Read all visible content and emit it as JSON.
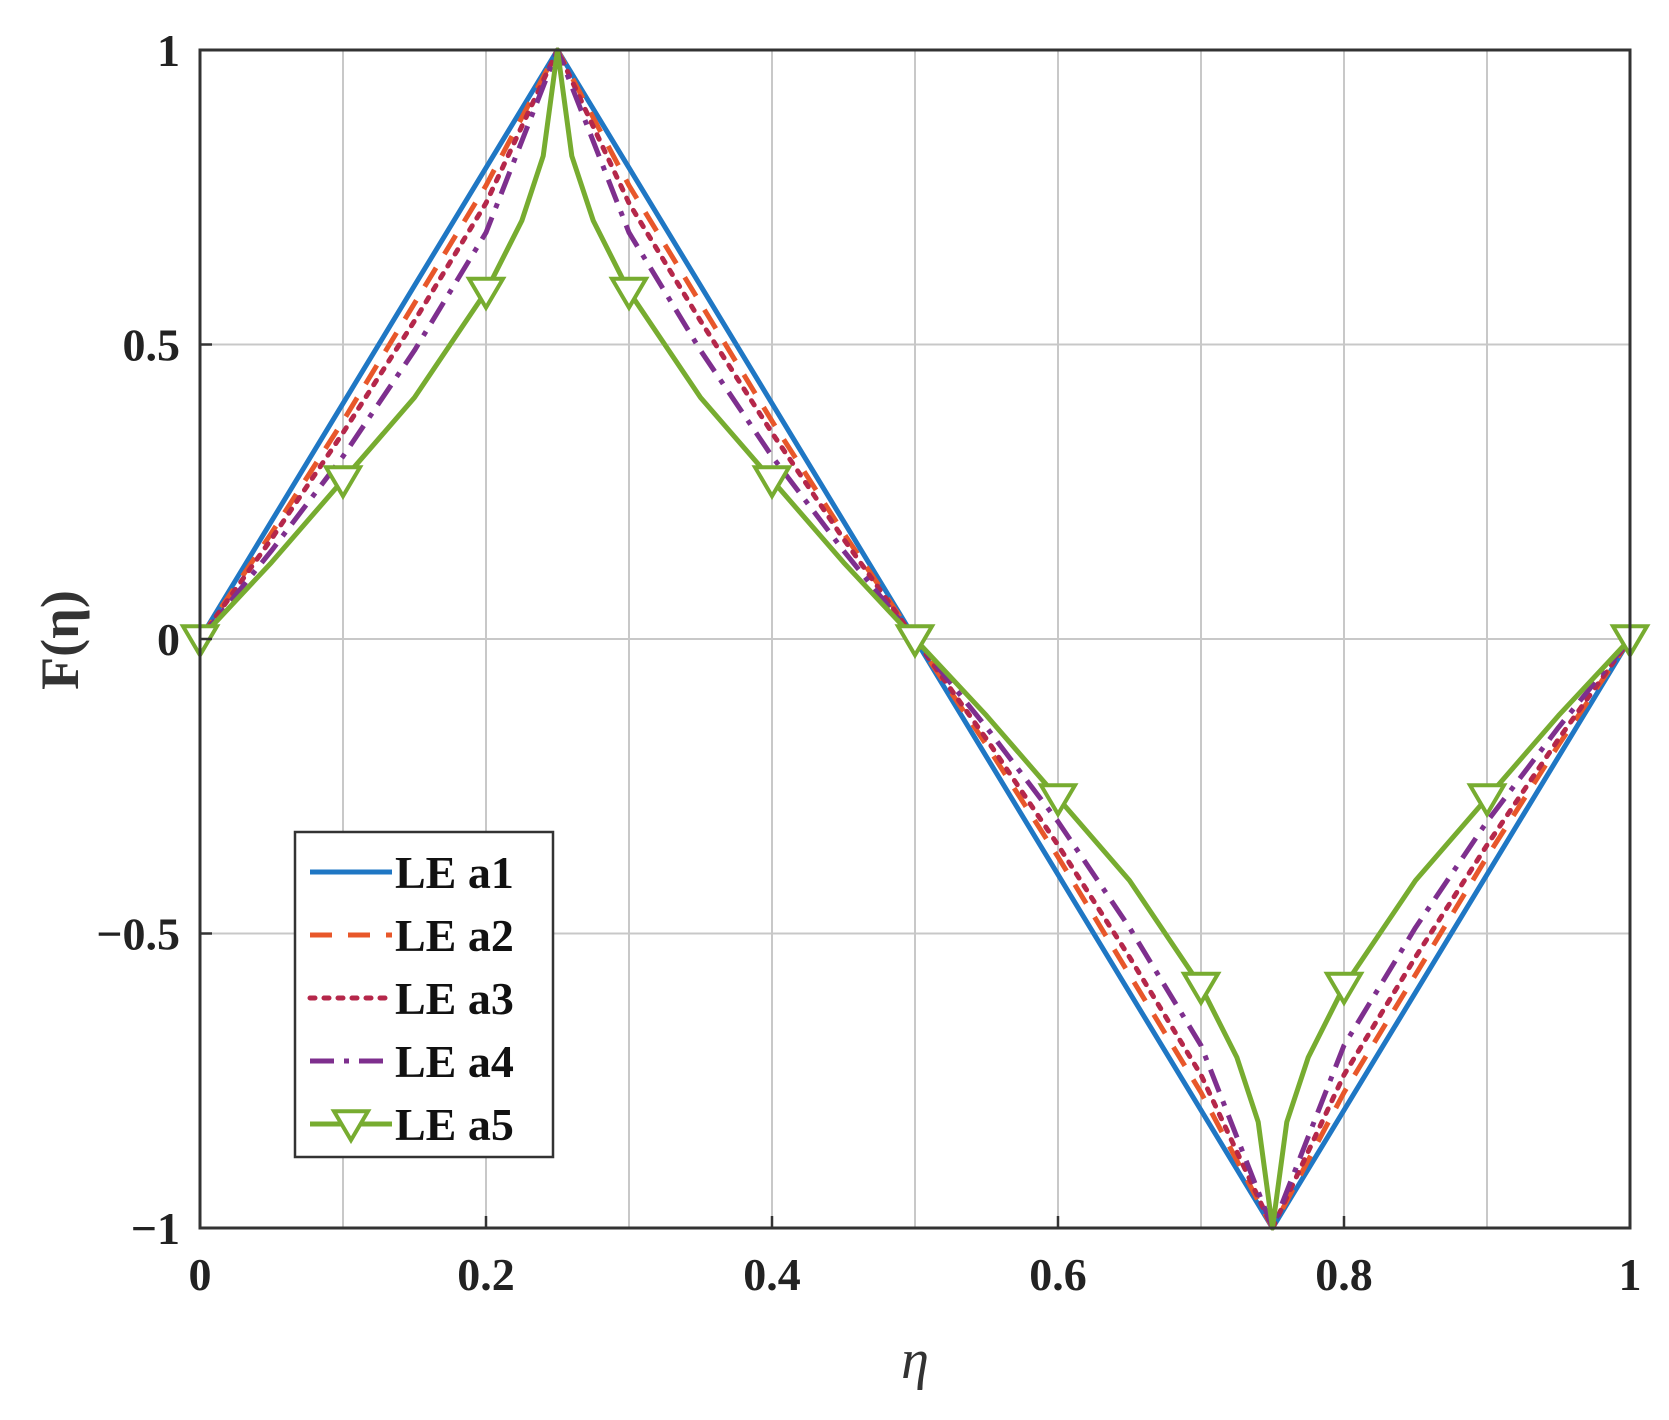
{
  "chart_data": {
    "type": "line",
    "xlabel": "η",
    "ylabel": "F(η)",
    "xlim": [
      0,
      1
    ],
    "ylim": [
      -1,
      1
    ],
    "grid": true,
    "legend_position": "bottom-left",
    "x_ticks": [
      "0",
      "0.2",
      "0.4",
      "0.6",
      "0.8",
      "1"
    ],
    "y_ticks": [
      "1",
      "0.5",
      "0",
      "−0.5",
      "−1"
    ],
    "series": [
      {
        "name": "LE a1",
        "color": "#1f77c4",
        "style": "solid",
        "marker": "none",
        "x": [
          0,
          0.05,
          0.1,
          0.15,
          0.2,
          0.25,
          0.3,
          0.35,
          0.4,
          0.45,
          0.5,
          0.55,
          0.6,
          0.65,
          0.7,
          0.75,
          0.8,
          0.85,
          0.9,
          0.95,
          1
        ],
        "y": [
          0,
          0.2,
          0.4,
          0.6,
          0.8,
          1,
          0.8,
          0.6,
          0.4,
          0.2,
          0,
          -0.2,
          -0.4,
          -0.6,
          -0.8,
          -1,
          -0.8,
          -0.6,
          -0.4,
          -0.2,
          0
        ]
      },
      {
        "name": "LE a2",
        "color": "#e8572a",
        "style": "dashed",
        "marker": "none",
        "x": [
          0,
          0.05,
          0.1,
          0.15,
          0.2,
          0.25,
          0.3,
          0.35,
          0.4,
          0.45,
          0.5,
          0.55,
          0.6,
          0.65,
          0.7,
          0.75,
          0.8,
          0.85,
          0.9,
          0.95,
          1
        ],
        "y": [
          0,
          0.18,
          0.37,
          0.57,
          0.77,
          1,
          0.77,
          0.57,
          0.37,
          0.18,
          0,
          -0.18,
          -0.37,
          -0.57,
          -0.77,
          -1,
          -0.77,
          -0.57,
          -0.37,
          -0.18,
          0
        ]
      },
      {
        "name": "LE a3",
        "color": "#b5274a",
        "style": "dotted",
        "marker": "none",
        "x": [
          0,
          0.05,
          0.1,
          0.15,
          0.2,
          0.25,
          0.3,
          0.35,
          0.4,
          0.45,
          0.5,
          0.55,
          0.6,
          0.65,
          0.7,
          0.75,
          0.8,
          0.85,
          0.9,
          0.95,
          1
        ],
        "y": [
          0,
          0.17,
          0.35,
          0.54,
          0.74,
          1,
          0.74,
          0.54,
          0.35,
          0.17,
          0,
          -0.17,
          -0.35,
          -0.54,
          -0.74,
          -1,
          -0.74,
          -0.54,
          -0.35,
          -0.17,
          0
        ]
      },
      {
        "name": "LE a4",
        "color": "#7e2f8e",
        "style": "dashdot",
        "marker": "none",
        "x": [
          0,
          0.05,
          0.1,
          0.15,
          0.2,
          0.25,
          0.3,
          0.35,
          0.4,
          0.45,
          0.5,
          0.55,
          0.6,
          0.65,
          0.7,
          0.75,
          0.8,
          0.85,
          0.9,
          0.95,
          1
        ],
        "y": [
          0,
          0.15,
          0.31,
          0.49,
          0.69,
          1,
          0.69,
          0.49,
          0.31,
          0.15,
          0,
          -0.15,
          -0.31,
          -0.49,
          -0.69,
          -1,
          -0.69,
          -0.49,
          -0.31,
          -0.15,
          0
        ]
      },
      {
        "name": "LE a5",
        "color": "#77ac30",
        "style": "solid",
        "marker": "triangle-down",
        "x": [
          0,
          0.05,
          0.1,
          0.15,
          0.2,
          0.225,
          0.24,
          0.25,
          0.26,
          0.275,
          0.3,
          0.35,
          0.4,
          0.45,
          0.5,
          0.55,
          0.6,
          0.65,
          0.7,
          0.725,
          0.74,
          0.75,
          0.76,
          0.775,
          0.8,
          0.85,
          0.9,
          0.95,
          1
        ],
        "y": [
          0,
          0.13,
          0.27,
          0.41,
          0.59,
          0.71,
          0.82,
          1,
          0.82,
          0.71,
          0.59,
          0.41,
          0.27,
          0.13,
          0,
          -0.13,
          -0.27,
          -0.41,
          -0.59,
          -0.71,
          -0.82,
          -1,
          -0.82,
          -0.71,
          -0.59,
          -0.41,
          -0.27,
          -0.13,
          0
        ],
        "marker_x": [
          0,
          0.1,
          0.2,
          0.3,
          0.4,
          0.5,
          0.6,
          0.7,
          0.8,
          0.9,
          1
        ],
        "marker_y": [
          0,
          0.27,
          0.59,
          0.59,
          0.27,
          0,
          -0.27,
          -0.59,
          -0.59,
          -0.27,
          0
        ]
      }
    ]
  }
}
